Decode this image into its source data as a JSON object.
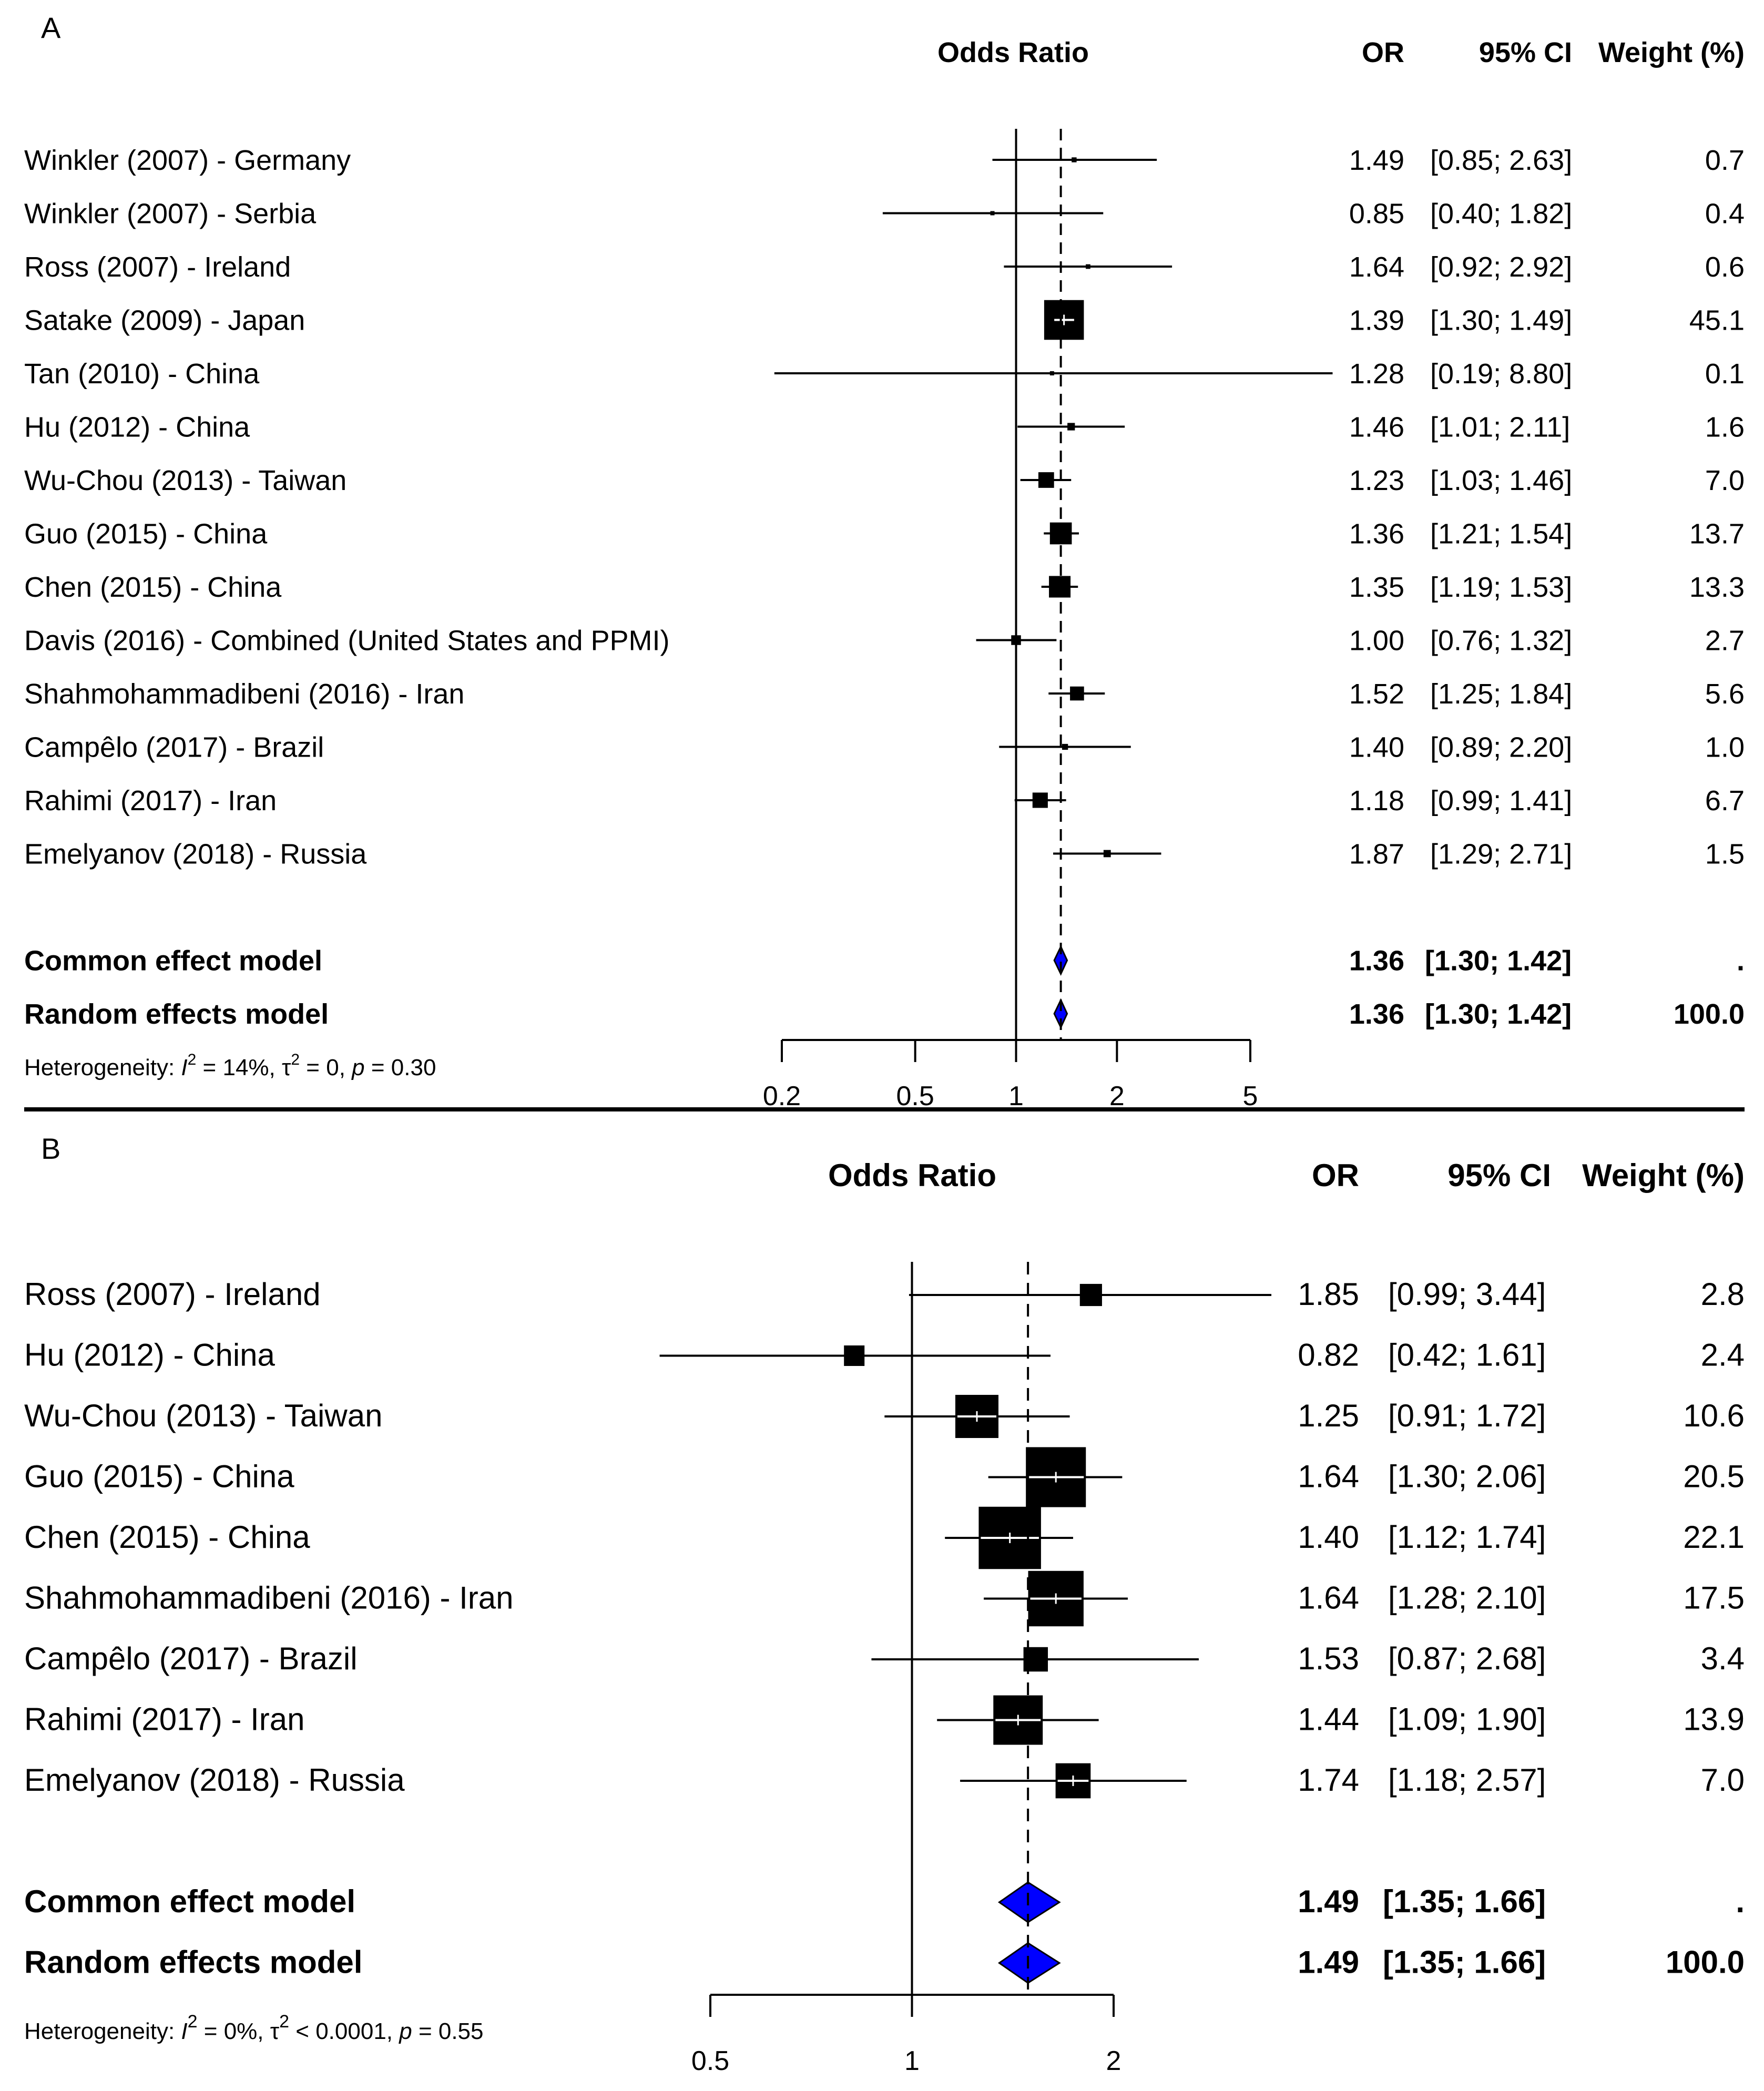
{
  "chart_data": [
    {
      "type": "forest",
      "panel_label": "A",
      "headers": {
        "plot": "Odds Ratio",
        "or": "OR",
        "ci": "95% CI",
        "weight": "Weight (%)"
      },
      "scale": "log",
      "xlim": [
        0.2,
        5
      ],
      "ticks": [
        {
          "value": 0.2,
          "label": "0.2"
        },
        {
          "value": 0.5,
          "label": "0.5"
        },
        {
          "value": 1,
          "label": "1"
        },
        {
          "value": 2,
          "label": "2"
        },
        {
          "value": 5,
          "label": "5"
        }
      ],
      "reference_line": 1,
      "pooled_line": 1.36,
      "studies": [
        {
          "label": "Winkler (2007) - Germany",
          "or": 1.49,
          "lo": 0.85,
          "hi": 2.63,
          "or_text": "1.49",
          "ci_text": "[0.85; 2.63]",
          "weight_text": "0.7",
          "weight": 0.7
        },
        {
          "label": "Winkler (2007) - Serbia",
          "or": 0.85,
          "lo": 0.4,
          "hi": 1.82,
          "or_text": "0.85",
          "ci_text": "[0.40; 1.82]",
          "weight_text": "0.4",
          "weight": 0.4
        },
        {
          "label": "Ross (2007) - Ireland",
          "or": 1.64,
          "lo": 0.92,
          "hi": 2.92,
          "or_text": "1.64",
          "ci_text": "[0.92; 2.92]",
          "weight_text": "0.6",
          "weight": 0.6
        },
        {
          "label": "Satake (2009) - Japan",
          "or": 1.39,
          "lo": 1.3,
          "hi": 1.49,
          "or_text": "1.39",
          "ci_text": "[1.30; 1.49]",
          "weight_text": "45.1",
          "weight": 45.1
        },
        {
          "label": "Tan (2010) - China",
          "or": 1.28,
          "lo": 0.19,
          "hi": 8.8,
          "or_text": "1.28",
          "ci_text": "[0.19; 8.80]",
          "weight_text": "0.1",
          "weight": 0.1
        },
        {
          "label": "Hu (2012) - China",
          "or": 1.46,
          "lo": 1.01,
          "hi": 2.11,
          "or_text": "1.46",
          "ci_text": "[1.01; 2.11]",
          "weight_text": "1.6",
          "weight": 1.6
        },
        {
          "label": "Wu-Chou (2013) - Taiwan",
          "or": 1.23,
          "lo": 1.03,
          "hi": 1.46,
          "or_text": "1.23",
          "ci_text": "[1.03; 1.46]",
          "weight_text": "7.0",
          "weight": 7.0
        },
        {
          "label": "Guo (2015) - China",
          "or": 1.36,
          "lo": 1.21,
          "hi": 1.54,
          "or_text": "1.36",
          "ci_text": "[1.21; 1.54]",
          "weight_text": "13.7",
          "weight": 13.7
        },
        {
          "label": "Chen (2015) - China",
          "or": 1.35,
          "lo": 1.19,
          "hi": 1.53,
          "or_text": "1.35",
          "ci_text": "[1.19; 1.53]",
          "weight_text": "13.3",
          "weight": 13.3
        },
        {
          "label": "Davis (2016) - Combined (United States and PPMI)",
          "or": 1.0,
          "lo": 0.76,
          "hi": 1.32,
          "or_text": "1.00",
          "ci_text": "[0.76; 1.32]",
          "weight_text": "2.7",
          "weight": 2.7
        },
        {
          "label": "Shahmohammadibeni (2016) - Iran",
          "or": 1.52,
          "lo": 1.25,
          "hi": 1.84,
          "or_text": "1.52",
          "ci_text": "[1.25; 1.84]",
          "weight_text": "5.6",
          "weight": 5.6
        },
        {
          "label": "Campêlo (2017) - Brazil",
          "or": 1.4,
          "lo": 0.89,
          "hi": 2.2,
          "or_text": "1.40",
          "ci_text": "[0.89; 2.20]",
          "weight_text": "1.0",
          "weight": 1.0
        },
        {
          "label": "Rahimi (2017) - Iran",
          "or": 1.18,
          "lo": 0.99,
          "hi": 1.41,
          "or_text": "1.18",
          "ci_text": "[0.99; 1.41]",
          "weight_text": "6.7",
          "weight": 6.7
        },
        {
          "label": "Emelyanov (2018) - Russia",
          "or": 1.87,
          "lo": 1.29,
          "hi": 2.71,
          "or_text": "1.87",
          "ci_text": "[1.29; 2.71]",
          "weight_text": "1.5",
          "weight": 1.5
        }
      ],
      "pooled": [
        {
          "label": "Common effect model",
          "or": 1.36,
          "lo": 1.3,
          "hi": 1.42,
          "or_text": "1.36",
          "ci_text": "[1.30; 1.42]",
          "weight_text": "."
        },
        {
          "label": "Random effects model",
          "or": 1.36,
          "lo": 1.3,
          "hi": 1.42,
          "or_text": "1.36",
          "ci_text": "[1.30; 1.42]",
          "weight_text": "100.0"
        }
      ],
      "heterogeneity": {
        "prefix": "Heterogeneity: ",
        "i2_symbol": "I",
        "i2_value": " = 14%, ",
        "tau_symbol": "τ",
        "tau_value": " = 0, ",
        "p_symbol": "p",
        "p_value": " = 0.30"
      }
    },
    {
      "type": "forest",
      "panel_label": "B",
      "headers": {
        "plot": "Odds Ratio",
        "or": "OR",
        "ci": "95% CI",
        "weight": "Weight (%)"
      },
      "scale": "log",
      "xlim": [
        0.5,
        2
      ],
      "ticks": [
        {
          "value": 0.5,
          "label": "0.5"
        },
        {
          "value": 1,
          "label": "1"
        },
        {
          "value": 2,
          "label": "2"
        }
      ],
      "reference_line": 1,
      "pooled_line": 1.49,
      "studies": [
        {
          "label": "Ross (2007) - Ireland",
          "or": 1.85,
          "lo": 0.99,
          "hi": 3.44,
          "or_text": "1.85",
          "ci_text": "[0.99; 3.44]",
          "weight_text": "2.8",
          "weight": 2.8
        },
        {
          "label": "Hu (2012) - China",
          "or": 0.82,
          "lo": 0.42,
          "hi": 1.61,
          "or_text": "0.82",
          "ci_text": "[0.42; 1.61]",
          "weight_text": "2.4",
          "weight": 2.4
        },
        {
          "label": "Wu-Chou (2013) - Taiwan",
          "or": 1.25,
          "lo": 0.91,
          "hi": 1.72,
          "or_text": "1.25",
          "ci_text": "[0.91; 1.72]",
          "weight_text": "10.6",
          "weight": 10.6
        },
        {
          "label": "Guo (2015) - China",
          "or": 1.64,
          "lo": 1.3,
          "hi": 2.06,
          "or_text": "1.64",
          "ci_text": "[1.30; 2.06]",
          "weight_text": "20.5",
          "weight": 20.5
        },
        {
          "label": "Chen (2015) - China",
          "or": 1.4,
          "lo": 1.12,
          "hi": 1.74,
          "or_text": "1.40",
          "ci_text": "[1.12; 1.74]",
          "weight_text": "22.1",
          "weight": 22.1
        },
        {
          "label": "Shahmohammadibeni (2016) - Iran",
          "or": 1.64,
          "lo": 1.28,
          "hi": 2.1,
          "or_text": "1.64",
          "ci_text": "[1.28; 2.10]",
          "weight_text": "17.5",
          "weight": 17.5
        },
        {
          "label": "Campêlo (2017) - Brazil",
          "or": 1.53,
          "lo": 0.87,
          "hi": 2.68,
          "or_text": "1.53",
          "ci_text": "[0.87; 2.68]",
          "weight_text": "3.4",
          "weight": 3.4
        },
        {
          "label": "Rahimi (2017) - Iran",
          "or": 1.44,
          "lo": 1.09,
          "hi": 1.9,
          "or_text": "1.44",
          "ci_text": "[1.09; 1.90]",
          "weight_text": "13.9",
          "weight": 13.9
        },
        {
          "label": "Emelyanov (2018) - Russia",
          "or": 1.74,
          "lo": 1.18,
          "hi": 2.57,
          "or_text": "1.74",
          "ci_text": "[1.18; 2.57]",
          "weight_text": "7.0",
          "weight": 7.0
        }
      ],
      "pooled": [
        {
          "label": "Common effect model",
          "or": 1.49,
          "lo": 1.35,
          "hi": 1.66,
          "or_text": "1.49",
          "ci_text": "[1.35; 1.66]",
          "weight_text": "."
        },
        {
          "label": "Random effects model",
          "or": 1.49,
          "lo": 1.35,
          "hi": 1.66,
          "or_text": "1.49",
          "ci_text": "[1.35; 1.66]",
          "weight_text": "100.0"
        }
      ],
      "heterogeneity": {
        "prefix": "Heterogeneity: ",
        "i2_symbol": "I",
        "i2_value": " = 0%, ",
        "tau_symbol": "τ",
        "tau_value": " < 0.0001, ",
        "p_symbol": "p",
        "p_value": " = 0.55"
      }
    }
  ],
  "colors": {
    "diamond": "#0000ff",
    "ink": "#000000"
  }
}
